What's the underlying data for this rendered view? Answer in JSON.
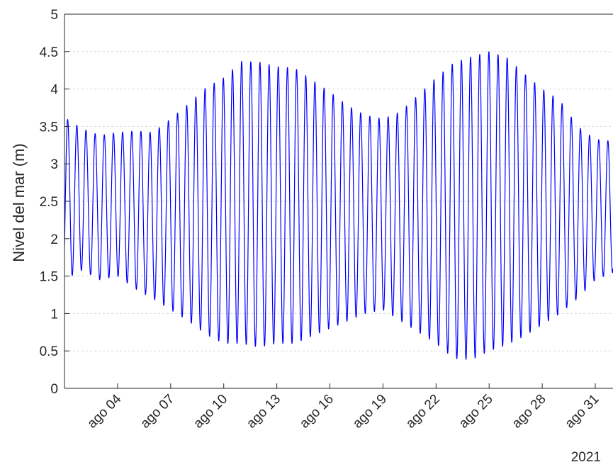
{
  "chart_data": {
    "type": "line",
    "title": "",
    "xlabel": "",
    "ylabel": "Nivel del mar (m)",
    "year_label": "2021",
    "ylim": [
      0,
      5
    ],
    "y_ticks": [
      0,
      0.5,
      1,
      1.5,
      2,
      2.5,
      3,
      3.5,
      4,
      4.5,
      5
    ],
    "y_tick_labels": [
      "0",
      "0.5",
      "1",
      "1.5",
      "2",
      "2.5",
      "3",
      "3.5",
      "4",
      "4.5",
      "5"
    ],
    "xlim": [
      "2021-08-01",
      "2021-09-01"
    ],
    "x_ticks": [
      "2021-08-04",
      "2021-08-07",
      "2021-08-10",
      "2021-08-13",
      "2021-08-16",
      "2021-08-19",
      "2021-08-22",
      "2021-08-25",
      "2021-08-28",
      "2021-08-31"
    ],
    "x_tick_labels": [
      "ago 04",
      "ago 07",
      "ago 10",
      "ago 13",
      "ago 16",
      "ago 19",
      "ago 22",
      "ago 25",
      "ago 28",
      "ago 31"
    ],
    "grid": "y-dashed",
    "series": [
      {
        "color": "#0000ff",
        "x": [
          "2021-08-01",
          "2021-08-02",
          "2021-08-03",
          "2021-08-04",
          "2021-08-05",
          "2021-08-06",
          "2021-08-07",
          "2021-08-08",
          "2021-08-09",
          "2021-08-10",
          "2021-08-11",
          "2021-08-12",
          "2021-08-13",
          "2021-08-14",
          "2021-08-15",
          "2021-08-16",
          "2021-08-17",
          "2021-08-18",
          "2021-08-19",
          "2021-08-20",
          "2021-08-21",
          "2021-08-22",
          "2021-08-23",
          "2021-08-24",
          "2021-08-25",
          "2021-08-26",
          "2021-08-27",
          "2021-08-28",
          "2021-08-29",
          "2021-08-30",
          "2021-08-31",
          "2021-09-01"
        ],
        "high_water": [
          3.62,
          3.47,
          3.38,
          3.42,
          3.44,
          3.42,
          3.6,
          3.8,
          4.02,
          4.15,
          4.37,
          4.36,
          4.3,
          4.28,
          4.12,
          3.96,
          3.78,
          3.65,
          3.6,
          3.7,
          3.92,
          4.15,
          4.35,
          4.43,
          4.5,
          4.42,
          4.2,
          4.0,
          3.85,
          3.5,
          3.33,
          3.3
        ],
        "low_water": [
          1.45,
          1.58,
          1.45,
          1.5,
          1.33,
          1.2,
          1.05,
          0.9,
          0.72,
          0.6,
          0.6,
          0.55,
          0.6,
          0.6,
          0.7,
          0.8,
          0.9,
          1.0,
          1.05,
          0.9,
          0.75,
          0.6,
          0.4,
          0.38,
          0.5,
          0.58,
          0.7,
          0.85,
          1.0,
          1.2,
          1.45,
          1.55
        ]
      }
    ]
  }
}
